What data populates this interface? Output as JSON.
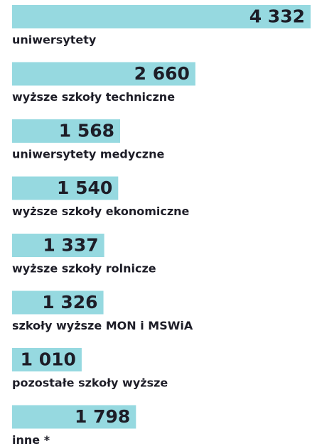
{
  "chart_data": {
    "type": "bar",
    "orientation": "horizontal",
    "color": "#96d9e0",
    "categories": [
      "uniwersytety",
      "wyższe szkoły techniczne",
      "uniwersytety medyczne",
      "wyższe szkoły ekonomiczne",
      "wyższe szkoły rolnicze",
      "szkoły wyższe MON i MSWiA",
      "pozostałe szkoły wyższe",
      "inne *"
    ],
    "values": [
      4332,
      2660,
      1568,
      1540,
      1337,
      1326,
      1010,
      1798
    ],
    "value_labels": [
      "4 332",
      "2 660",
      "1 568",
      "1 540",
      "1 337",
      "1 326",
      "1 010",
      "1 798"
    ]
  }
}
